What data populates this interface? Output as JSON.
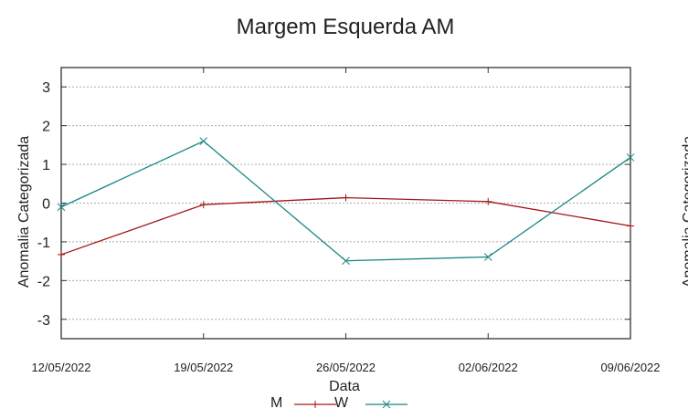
{
  "chart_data": {
    "type": "line",
    "title": "Margem Esquerda AM",
    "xlabel": "Data",
    "ylabel": "Anomalia Categorizada",
    "y2label": "Anomalia Categorizada",
    "categories": [
      "12/05/2022",
      "19/05/2022",
      "26/05/2022",
      "02/06/2022",
      "09/06/2022"
    ],
    "ylim": [
      -3.5,
      3.5
    ],
    "yticks": [
      -3,
      -2,
      -1,
      0,
      1,
      2,
      3
    ],
    "grid": true,
    "legend_position": "bottom",
    "series": [
      {
        "name": "M",
        "color": "#a31515",
        "marker": "plus",
        "values": [
          -1.33,
          -0.04,
          0.14,
          0.04,
          -0.59
        ]
      },
      {
        "name": "W",
        "color": "#1a8585",
        "marker": "cross",
        "values": [
          -0.1,
          1.6,
          -1.49,
          -1.39,
          1.18
        ]
      }
    ]
  }
}
